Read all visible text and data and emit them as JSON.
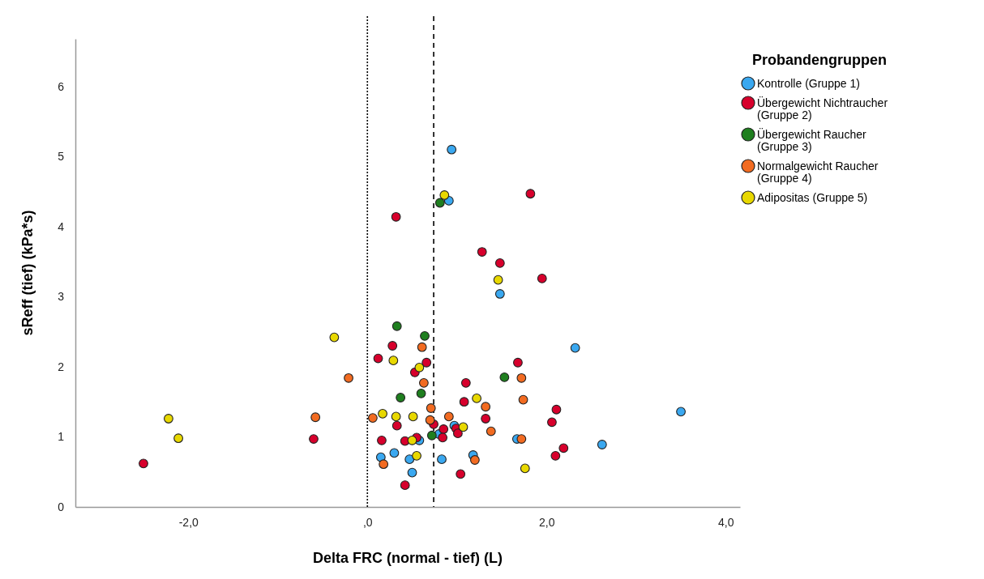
{
  "chart_data": {
    "type": "scatter",
    "xlabel": "Delta FRC (normal - tief) (L)",
    "ylabel": "sReff (tief) (kPa*s)",
    "legend_title": "Probandengruppen",
    "legend": "top right",
    "marker": "circle",
    "grid": false,
    "xlim": [
      -3.26,
      4.16
    ],
    "ylim": [
      0,
      6.68
    ],
    "xticks": [
      {
        "value": -2,
        "label": "-2,0"
      },
      {
        "value": 0,
        "label": ",0"
      },
      {
        "value": 2,
        "label": "2,0"
      },
      {
        "value": 4,
        "label": "4,0"
      }
    ],
    "yticks": [
      0,
      1,
      2,
      3,
      4,
      5,
      6
    ],
    "ref_lines": [
      {
        "axis": "x",
        "value": 0,
        "line_style": "dotted",
        "color": "#000000"
      },
      {
        "axis": "x",
        "value": 0.74,
        "line_style": "dashed",
        "color": "#000000"
      }
    ],
    "series": [
      {
        "name": "Kontrolle (Gruppe 1)",
        "color": "#3aa8f0",
        "x": [
          0.94,
          0.91,
          1.48,
          2.32,
          3.5,
          2.62,
          1.18,
          0.83,
          0.15,
          0.3,
          0.47,
          0.5,
          0.58,
          0.8,
          0.97,
          1.67
        ],
        "values": [
          5.1,
          4.37,
          3.04,
          2.27,
          1.36,
          0.89,
          0.74,
          0.68,
          0.71,
          0.77,
          0.68,
          0.49,
          0.95,
          1.04,
          1.16,
          0.97
        ]
      },
      {
        "name": "Übergewicht Nichtraucher (Gruppe 2)",
        "color": "#d7002c",
        "x": [
          -2.5,
          -0.6,
          0.32,
          1.82,
          1.28,
          1.48,
          1.95,
          1.68,
          1.1,
          0.12,
          0.28,
          0.66,
          0.53,
          1.08,
          0.33,
          0.16,
          0.42,
          0.55,
          0.74,
          0.85,
          0.84,
          0.99,
          1.01,
          1.32,
          0.42,
          1.04,
          2.11,
          2.06,
          2.19,
          2.1
        ],
        "values": [
          0.62,
          0.97,
          4.14,
          4.47,
          3.64,
          3.48,
          3.26,
          2.06,
          1.77,
          2.12,
          2.3,
          2.06,
          1.92,
          1.5,
          1.16,
          0.95,
          0.94,
          0.99,
          1.18,
          1.11,
          0.99,
          1.12,
          1.05,
          1.26,
          0.31,
          0.47,
          1.39,
          1.21,
          0.84,
          0.73
        ]
      },
      {
        "name": "Übergewicht Raucher (Gruppe 3)",
        "color": "#1f7f1f",
        "x": [
          0.33,
          0.64,
          0.81,
          0.37,
          0.6,
          1.53,
          0.72
        ],
        "values": [
          2.58,
          2.44,
          4.34,
          1.56,
          1.62,
          1.85,
          1.02
        ]
      },
      {
        "name": "Normalgewicht Raucher (Gruppe 4)",
        "color": "#f26b21",
        "x": [
          -0.58,
          -0.21,
          0.06,
          0.18,
          0.61,
          0.63,
          0.71,
          0.7,
          0.91,
          1.32,
          1.38,
          1.2,
          1.72,
          1.74,
          1.72
        ],
        "values": [
          1.28,
          1.84,
          1.27,
          0.61,
          2.28,
          1.77,
          1.41,
          1.24,
          1.29,
          1.43,
          1.08,
          0.67,
          1.84,
          1.53,
          0.97
        ]
      },
      {
        "name": "Adipositas (Gruppe 5)",
        "color": "#e8d800",
        "x": [
          -2.22,
          -2.11,
          -0.37,
          0.29,
          0.17,
          0.32,
          0.51,
          0.58,
          0.5,
          0.55,
          1.22,
          1.07,
          0.86,
          1.46,
          1.76
        ],
        "values": [
          1.26,
          0.98,
          2.42,
          2.09,
          1.33,
          1.29,
          1.29,
          1.99,
          0.95,
          0.73,
          1.55,
          1.14,
          4.45,
          3.24,
          0.55
        ]
      }
    ]
  }
}
